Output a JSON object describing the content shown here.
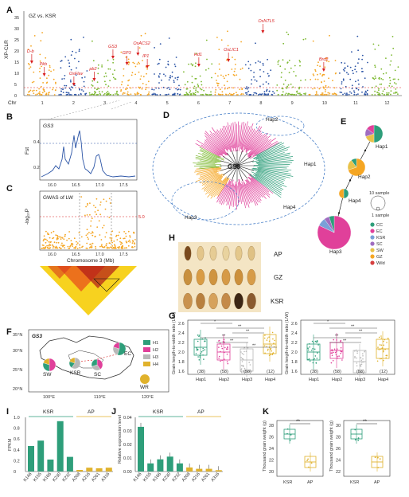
{
  "colors": {
    "orange": "#f5a623",
    "blue": "#2c55a6",
    "green": "#7cb82f",
    "teal": "#2e9e7a",
    "pink": "#e0409a",
    "gray": "#b8b8b8",
    "gold": "#e0b22c",
    "red": "#d81e1e"
  },
  "panelA": {
    "letter": "A",
    "title": "GZ vs. KSR",
    "ylabel": "XP-CLR",
    "xlabel": "Chr",
    "yticks": [
      "0",
      "5",
      "10",
      "15",
      "20",
      "25",
      "30",
      "35"
    ],
    "chromosomes": [
      "1",
      "2",
      "3",
      "4",
      "5",
      "6",
      "7",
      "8",
      "9",
      "10",
      "11",
      "12"
    ],
    "genes": [
      {
        "label": "D-b",
        "chr": 1
      },
      {
        "label": "Pkb",
        "chr": 1
      },
      {
        "label": "OsFlav",
        "chr": 2
      },
      {
        "label": "pb2",
        "chr": 3
      },
      {
        "label": "GS3",
        "chr": 3
      },
      {
        "label": "GP3",
        "chr": 4
      },
      {
        "label": "OsACS2",
        "chr": 4
      },
      {
        "label": "IP1",
        "chr": 4
      },
      {
        "label": "Hd1",
        "chr": 6
      },
      {
        "label": "OsLIC1",
        "chr": 7
      },
      {
        "label": "OsNTL5",
        "chr": 8
      },
      {
        "label": "Brd2",
        "chr": 10
      }
    ]
  },
  "panelB": {
    "letter": "B",
    "gene": "GS3",
    "ylabel": "Fst",
    "yticks": [
      "0.2",
      "0.4"
    ],
    "xticks": [
      "16.0",
      "16.5",
      "17.0",
      "17.5"
    ]
  },
  "panelC": {
    "letter": "C",
    "title": "GWAS of LW",
    "ylabel": "-log₁₀P",
    "yticks": [
      "0",
      "2",
      "4",
      "6",
      "8"
    ],
    "xticks": [
      "16.0",
      "16.5",
      "17.0",
      "17.5"
    ],
    "threshold": "5.0",
    "xlabel": "Chromosome 3 (Mb)"
  },
  "panelD": {
    "letter": "D",
    "center": "GS3",
    "haps": [
      "Hap1",
      "Hap2",
      "Hap3",
      "Hap4"
    ]
  },
  "panelE": {
    "letter": "E",
    "haps": [
      "Hap1",
      "Hap2",
      "Hap4",
      "Hap3"
    ],
    "scale_big": "10 sample",
    "scale_small": "1 sample",
    "legend": [
      {
        "label": "CC",
        "color": "#2e9e7a"
      },
      {
        "label": "EC",
        "color": "#e0409a"
      },
      {
        "label": "KSR",
        "color": "#7aa0d8"
      },
      {
        "label": "SC",
        "color": "#a06cc0"
      },
      {
        "label": "SW",
        "color": "#e8c24a"
      },
      {
        "label": "GZ",
        "color": "#f5a623"
      },
      {
        "label": "Wild",
        "color": "#d64040"
      }
    ]
  },
  "panelF": {
    "letter": "F",
    "gene": "GS3",
    "yticks": [
      "35°N",
      "30°N",
      "25°N",
      "20°N"
    ],
    "xticks": [
      "100°E",
      "110°E",
      "120°E"
    ],
    "regions": [
      "SW",
      "KSR",
      "SC",
      "EC",
      "WR"
    ],
    "legend": [
      {
        "label": "H1",
        "color": "#2e9e7a"
      },
      {
        "label": "H2",
        "color": "#e0409a"
      },
      {
        "label": "H3",
        "color": "#b8b8b8"
      },
      {
        "label": "H4",
        "color": "#e0b22c"
      }
    ]
  },
  "panelG": {
    "letter": "G",
    "ylabel_left": "Grain length-to-width ratio (L/W)",
    "ylabel_right": "Grain length-to-width ratio (L/W)",
    "yticks_left": [
      "1.6",
      "1.8",
      "2.0",
      "2.2",
      "2.4",
      "2.6"
    ],
    "yticks_right": [
      "1.6",
      "1.8",
      "2.0",
      "2.2",
      "2.4",
      "2.6"
    ],
    "groups": [
      "Hap1",
      "Hap2",
      "Hap3",
      "Hap4"
    ],
    "counts_left": [
      "(38)",
      "(58)",
      "(58)",
      "(12)"
    ],
    "counts_right": [
      "(38)",
      "(58)",
      "(58)",
      "(12)"
    ],
    "sig": [
      "*",
      "**",
      "**",
      "**",
      "**",
      "**"
    ],
    "sig_right": [
      "*",
      "**",
      "**",
      "**",
      "**"
    ]
  },
  "panelH": {
    "letter": "H",
    "rows": [
      "AP",
      "GZ",
      "KSR"
    ]
  },
  "panelI": {
    "letter": "I",
    "ylabel": "FPKM",
    "yticks": [
      "0",
      "0.2",
      "0.4",
      "0.6",
      "0.8",
      "1.0"
    ],
    "groups": [
      "KSR",
      "AP"
    ],
    "categories": [
      "K146",
      "K155",
      "K166",
      "K230",
      "K232",
      "A208",
      "A216",
      "A261",
      "A316"
    ],
    "values": [
      0.47,
      0.57,
      0.22,
      0.93,
      0.27,
      0.03,
      0.07,
      0.06,
      0.07
    ]
  },
  "panelJ": {
    "letter": "J",
    "ylabel": "Relative expression level",
    "yticks": [
      "0.00",
      "0.01",
      "0.02",
      "0.03",
      "0.04"
    ],
    "groups": [
      "KSR",
      "AP"
    ],
    "categories": [
      "K146",
      "K155",
      "K166",
      "K230",
      "K232",
      "A208",
      "A216",
      "A261",
      "A316"
    ],
    "values": [
      0.033,
      0.006,
      0.009,
      0.011,
      0.006,
      0.003,
      0.002,
      0.002,
      0.001
    ]
  },
  "panelK": {
    "letter": "K",
    "ylabel_left": "Thousand grain weight (g)",
    "ylabel_right": "Thousand grain weight (g)",
    "yticks_left": [
      "20",
      "22",
      "24",
      "26",
      "28"
    ],
    "yticks_right": [
      "22",
      "24",
      "26",
      "28",
      "30"
    ],
    "groups": [
      "KSR",
      "AP"
    ],
    "sig": "**"
  },
  "chart_data": [
    {
      "type": "bar",
      "title": "",
      "ylabel": "FPKM",
      "categories": [
        "K146",
        "K155",
        "K166",
        "K230",
        "K232",
        "A208",
        "A216",
        "A261",
        "A316"
      ],
      "values": [
        0.47,
        0.57,
        0.22,
        0.93,
        0.27,
        0.03,
        0.07,
        0.06,
        0.07
      ],
      "ylim": [
        0,
        1.0
      ]
    },
    {
      "type": "bar",
      "title": "",
      "ylabel": "Relative expression level",
      "categories": [
        "K146",
        "K155",
        "K166",
        "K230",
        "K232",
        "A208",
        "A216",
        "A261",
        "A316"
      ],
      "values": [
        0.033,
        0.006,
        0.009,
        0.011,
        0.006,
        0.003,
        0.002,
        0.002,
        0.001
      ],
      "ylim": [
        0,
        0.04
      ]
    }
  ]
}
